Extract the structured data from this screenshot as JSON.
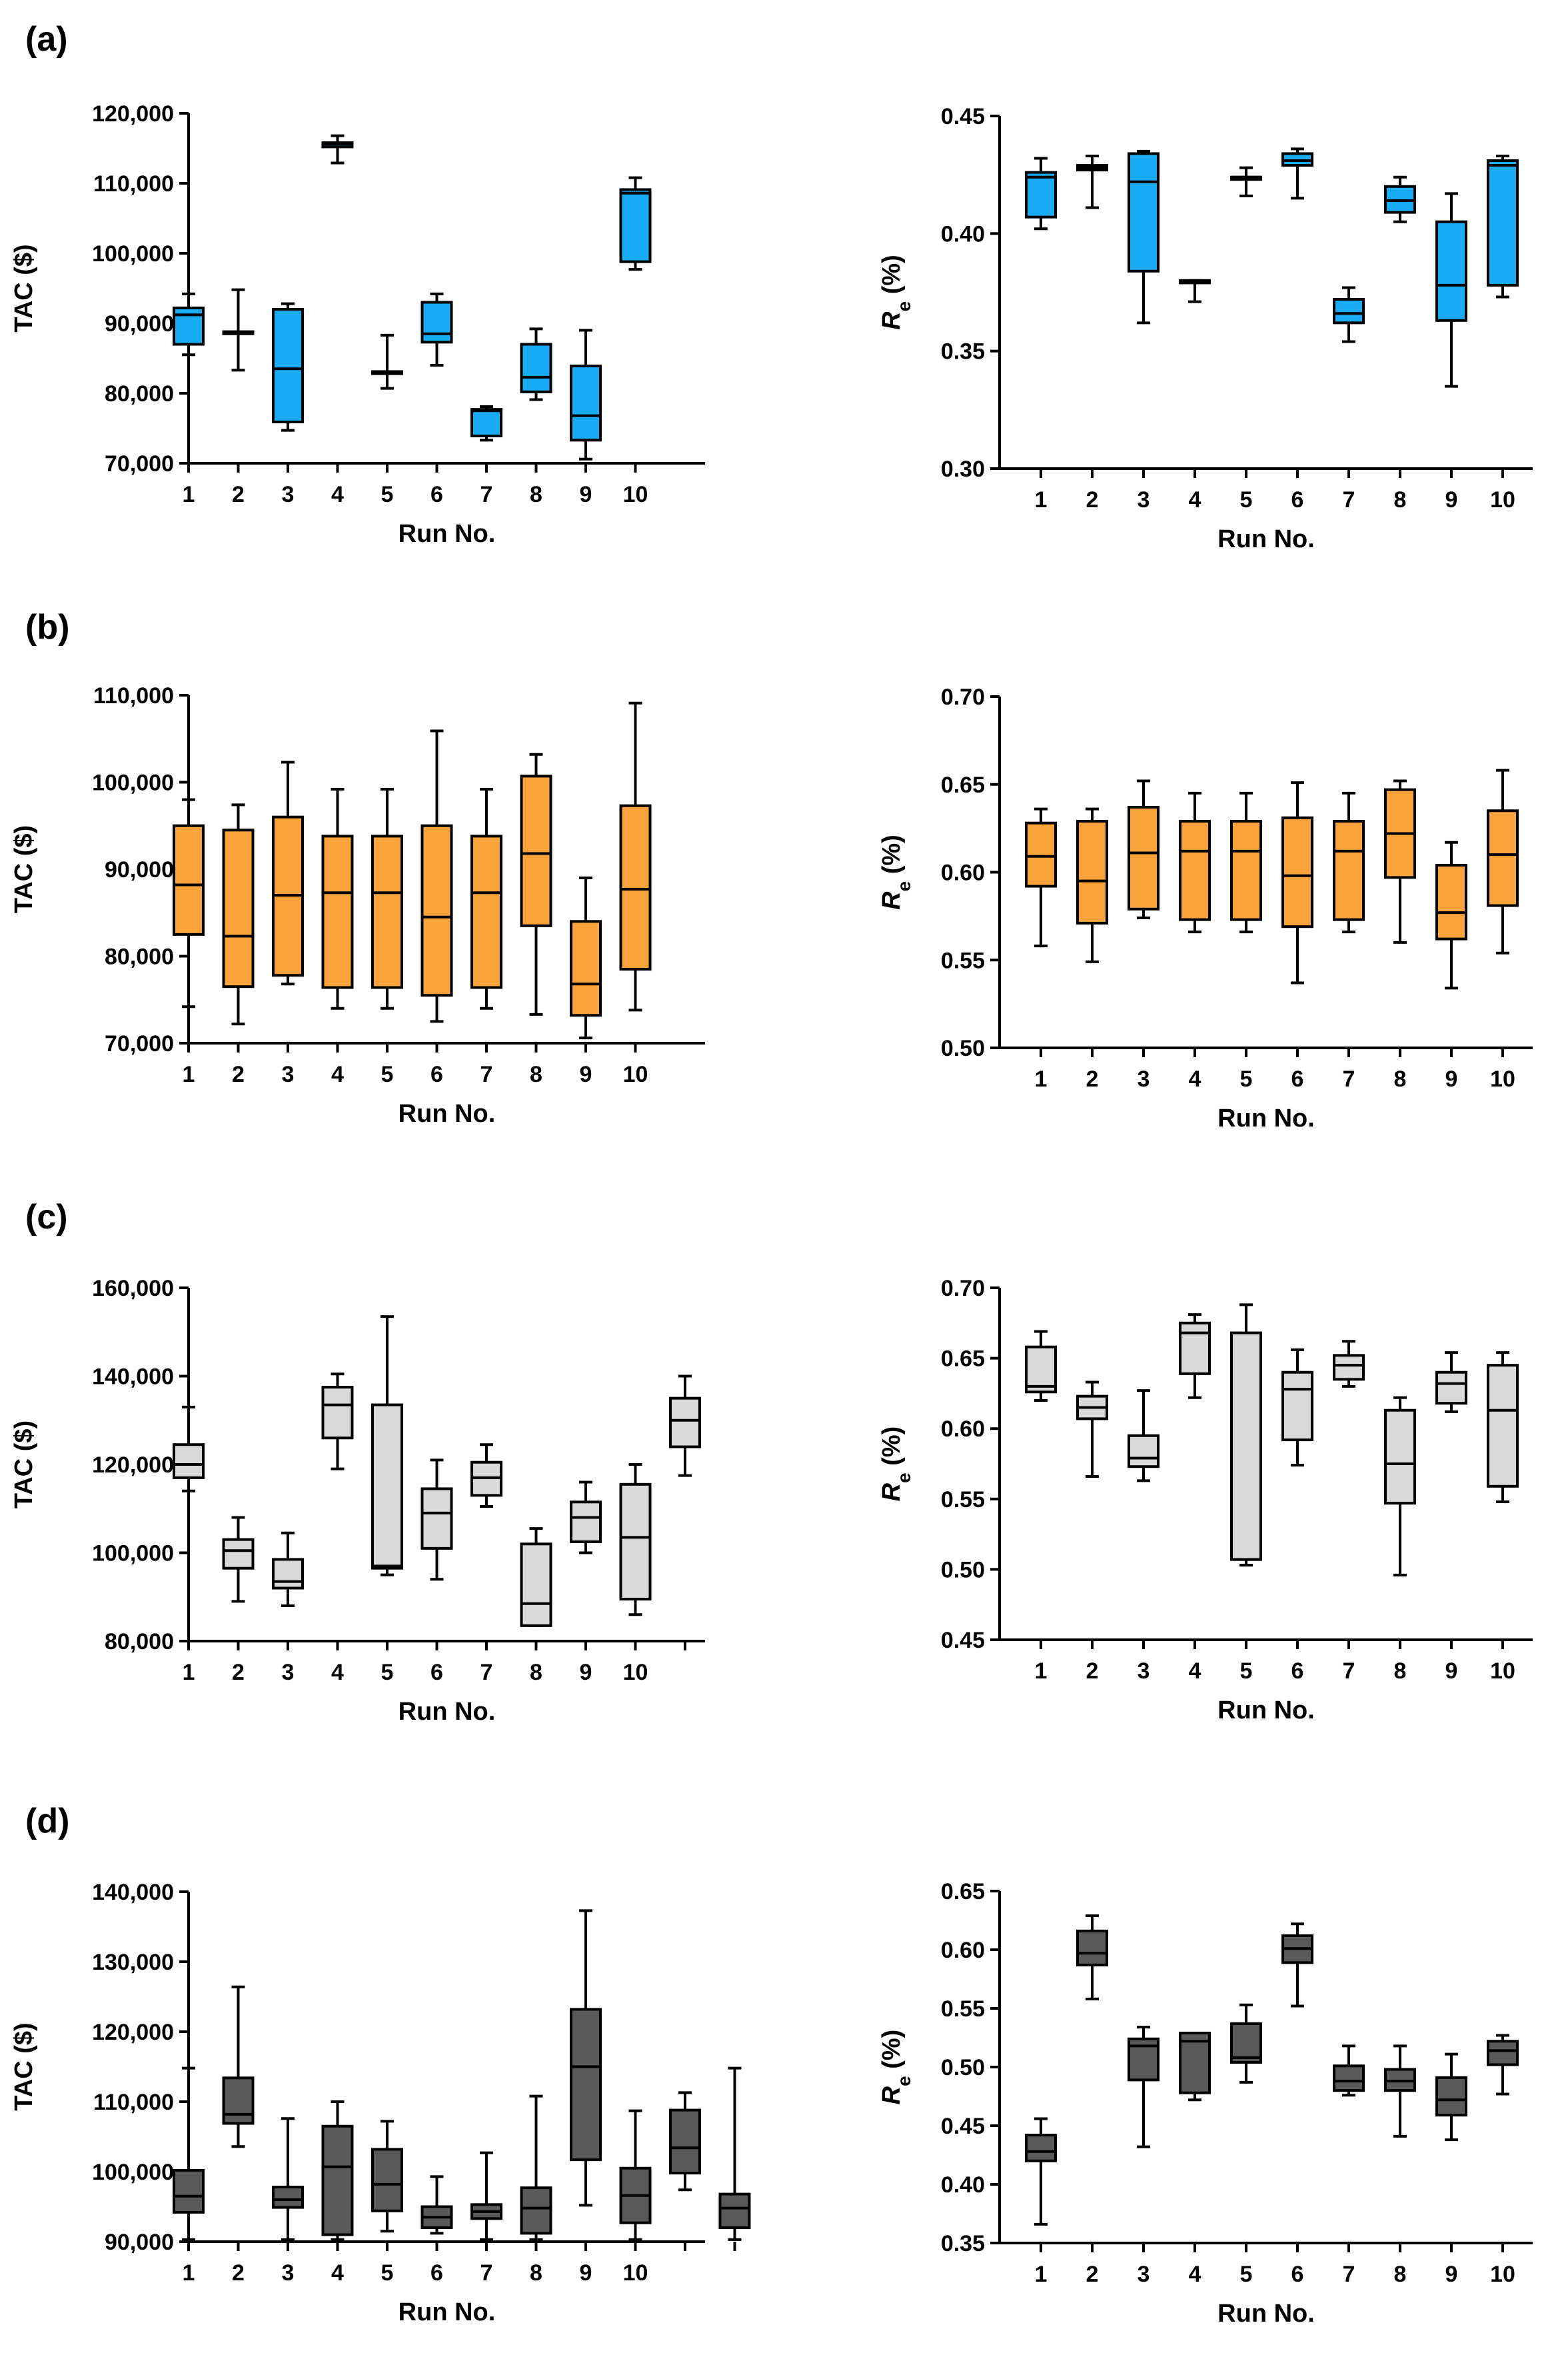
{
  "figure": {
    "panel_labels": [
      "(a)",
      "(b)",
      "(c)",
      "(d)"
    ],
    "colors": {
      "a": "#1aabf5",
      "b": "#f9a33a",
      "c": "#d9d9d9",
      "d": "#595959"
    }
  },
  "chart_data": [
    {
      "panel": "(a)",
      "type": "box",
      "title": "",
      "xlabel": "Run No.",
      "ylabel": "TAC ($)",
      "ylim": [
        70000,
        120000
      ],
      "yticks": [
        70000,
        80000,
        90000,
        100000,
        110000,
        120000
      ],
      "ytick_labels": [
        "70,000",
        "80,000",
        "90,000",
        "100,000",
        "110,000",
        "120,000"
      ],
      "x_positions": [
        1,
        2,
        3,
        4,
        5,
        6,
        7,
        8,
        9,
        10
      ],
      "xtick_labels": [
        "1",
        "2",
        "3",
        "4",
        "5",
        "6",
        "7",
        "8",
        "9",
        "10"
      ],
      "color": "#1aabf5",
      "boxes": [
        {
          "min": 85500,
          "q1": 87000,
          "median": 91200,
          "q3": 92200,
          "max": 94200
        },
        {
          "min": 83300,
          "q1": 88500,
          "median": 88700,
          "q3": 88800,
          "max": 94800
        },
        {
          "min": 74700,
          "q1": 75900,
          "median": 83500,
          "q3": 92000,
          "max": 92800
        },
        {
          "min": 112900,
          "q1": 115200,
          "median": 115600,
          "q3": 115800,
          "max": 116800
        },
        {
          "min": 80700,
          "q1": 82800,
          "median": 83000,
          "q3": 83100,
          "max": 88300
        },
        {
          "min": 84000,
          "q1": 87300,
          "median": 88500,
          "q3": 93000,
          "max": 94200
        },
        {
          "min": 73300,
          "q1": 73900,
          "median": 77500,
          "q3": 77700,
          "max": 78100
        },
        {
          "min": 79100,
          "q1": 80200,
          "median": 82300,
          "q3": 87000,
          "max": 89200
        },
        {
          "min": 70600,
          "q1": 73300,
          "median": 76800,
          "q3": 83900,
          "max": 89000
        },
        {
          "min": 97700,
          "q1": 98800,
          "median": 108600,
          "q3": 109100,
          "max": 110800
        }
      ]
    },
    {
      "panel": "(a)",
      "type": "box",
      "title": "",
      "xlabel": "Run No.",
      "ylabel": "Re (%)",
      "ylim": [
        0.3,
        0.45
      ],
      "yticks": [
        0.3,
        0.35,
        0.4,
        0.45
      ],
      "ytick_labels": [
        "0.30",
        "0.35",
        "0.40",
        "0.45"
      ],
      "x_positions": [
        1,
        2,
        3,
        4,
        5,
        6,
        7,
        8,
        9,
        10
      ],
      "xtick_labels": [
        "1",
        "2",
        "3",
        "4",
        "5",
        "6",
        "7",
        "8",
        "9",
        "10"
      ],
      "color": "#1aabf5",
      "boxes": [
        {
          "min": 0.402,
          "q1": 0.407,
          "median": 0.424,
          "q3": 0.426,
          "max": 0.432
        },
        {
          "min": 0.411,
          "q1": 0.427,
          "median": 0.428,
          "q3": 0.429,
          "max": 0.433
        },
        {
          "min": 0.362,
          "q1": 0.384,
          "median": 0.422,
          "q3": 0.434,
          "max": 0.435
        },
        {
          "min": 0.371,
          "q1": 0.379,
          "median": 0.38,
          "q3": 0.38,
          "max": 0.38
        },
        {
          "min": 0.416,
          "q1": 0.423,
          "median": 0.424,
          "q3": 0.424,
          "max": 0.428
        },
        {
          "min": 0.415,
          "q1": 0.429,
          "median": 0.431,
          "q3": 0.434,
          "max": 0.436
        },
        {
          "min": 0.354,
          "q1": 0.362,
          "median": 0.366,
          "q3": 0.372,
          "max": 0.377
        },
        {
          "min": 0.405,
          "q1": 0.409,
          "median": 0.414,
          "q3": 0.42,
          "max": 0.424
        },
        {
          "min": 0.335,
          "q1": 0.363,
          "median": 0.378,
          "q3": 0.405,
          "max": 0.417
        },
        {
          "min": 0.373,
          "q1": 0.378,
          "median": 0.429,
          "q3": 0.431,
          "max": 0.433
        }
      ]
    },
    {
      "panel": "(b)",
      "type": "box",
      "title": "",
      "xlabel": "Run No.",
      "ylabel": "TAC ($)",
      "ylim": [
        70000,
        110000
      ],
      "yticks": [
        70000,
        80000,
        90000,
        100000,
        110000
      ],
      "ytick_labels": [
        "70,000",
        "80,000",
        "90,000",
        "100,000",
        "110,000"
      ],
      "x_positions": [
        1,
        2,
        3,
        4,
        5,
        6,
        7,
        8,
        9,
        10
      ],
      "xtick_labels": [
        "1",
        "2",
        "3",
        "4",
        "5",
        "6",
        "7",
        "8",
        "9",
        "10"
      ],
      "color": "#f9a33a",
      "boxes": [
        {
          "min": 74200,
          "q1": 82500,
          "median": 88200,
          "q3": 95000,
          "max": 98000
        },
        {
          "min": 72200,
          "q1": 76500,
          "median": 82300,
          "q3": 94500,
          "max": 97400
        },
        {
          "min": 76800,
          "q1": 77800,
          "median": 87000,
          "q3": 96000,
          "max": 102300
        },
        {
          "min": 74000,
          "q1": 76400,
          "median": 87300,
          "q3": 93800,
          "max": 99200
        },
        {
          "min": 74000,
          "q1": 76400,
          "median": 87300,
          "q3": 93800,
          "max": 99200
        },
        {
          "min": 72500,
          "q1": 75500,
          "median": 84500,
          "q3": 95000,
          "max": 105900
        },
        {
          "min": 74000,
          "q1": 76400,
          "median": 87300,
          "q3": 93800,
          "max": 99200
        },
        {
          "min": 73300,
          "q1": 83500,
          "median": 91800,
          "q3": 100700,
          "max": 103200
        },
        {
          "min": 70600,
          "q1": 73200,
          "median": 76800,
          "q3": 84000,
          "max": 89000
        },
        {
          "min": 73800,
          "q1": 78500,
          "median": 87700,
          "q3": 97300,
          "max": 109100
        }
      ]
    },
    {
      "panel": "(b)",
      "type": "box",
      "title": "",
      "xlabel": "Run No.",
      "ylabel": "Re (%)",
      "ylim": [
        0.5,
        0.7
      ],
      "yticks": [
        0.5,
        0.55,
        0.6,
        0.65,
        0.7
      ],
      "ytick_labels": [
        "0.50",
        "0.55",
        "0.60",
        "0.65",
        "0.70"
      ],
      "x_positions": [
        1,
        2,
        3,
        4,
        5,
        6,
        7,
        8,
        9,
        10
      ],
      "xtick_labels": [
        "1",
        "2",
        "3",
        "4",
        "5",
        "6",
        "7",
        "8",
        "9",
        "10"
      ],
      "color": "#f9a33a",
      "boxes": [
        {
          "min": 0.558,
          "q1": 0.592,
          "median": 0.609,
          "q3": 0.628,
          "max": 0.636
        },
        {
          "min": 0.549,
          "q1": 0.571,
          "median": 0.595,
          "q3": 0.629,
          "max": 0.636
        },
        {
          "min": 0.574,
          "q1": 0.579,
          "median": 0.611,
          "q3": 0.637,
          "max": 0.652
        },
        {
          "min": 0.566,
          "q1": 0.573,
          "median": 0.612,
          "q3": 0.629,
          "max": 0.645
        },
        {
          "min": 0.566,
          "q1": 0.573,
          "median": 0.612,
          "q3": 0.629,
          "max": 0.645
        },
        {
          "min": 0.537,
          "q1": 0.569,
          "median": 0.598,
          "q3": 0.631,
          "max": 0.651
        },
        {
          "min": 0.566,
          "q1": 0.573,
          "median": 0.612,
          "q3": 0.629,
          "max": 0.645
        },
        {
          "min": 0.56,
          "q1": 0.597,
          "median": 0.622,
          "q3": 0.647,
          "max": 0.652
        },
        {
          "min": 0.534,
          "q1": 0.562,
          "median": 0.577,
          "q3": 0.604,
          "max": 0.617
        },
        {
          "min": 0.554,
          "q1": 0.581,
          "median": 0.61,
          "q3": 0.635,
          "max": 0.658
        }
      ]
    },
    {
      "panel": "(c)",
      "type": "box",
      "title": "",
      "xlabel": "Run No.",
      "ylabel": "TAC ($)",
      "ylim": [
        80000,
        160000
      ],
      "yticks": [
        80000,
        100000,
        120000,
        140000,
        160000
      ],
      "ytick_labels": [
        "80,000",
        "100,000",
        "120,000",
        "140,000",
        "160,000"
      ],
      "x_positions": [
        1,
        2,
        3,
        4,
        5,
        6,
        7,
        8,
        9,
        10,
        11
      ],
      "xtick_labels": [
        "1",
        "2",
        "3",
        "4",
        "5",
        "6",
        "7",
        "8",
        "9",
        "10",
        ""
      ],
      "color": "#d9d9d9",
      "boxes": [
        {
          "min": 114000,
          "q1": 117000,
          "median": 120000,
          "q3": 124500,
          "max": 133000
        },
        {
          "min": 89000,
          "q1": 96500,
          "median": 100500,
          "q3": 103000,
          "max": 108000
        },
        {
          "min": 88000,
          "q1": 92000,
          "median": 93500,
          "q3": 98500,
          "max": 104500
        },
        {
          "min": 119000,
          "q1": 126000,
          "median": 133500,
          "q3": 137500,
          "max": 140500
        },
        {
          "min": 95000,
          "q1": 96500,
          "median": 97000,
          "q3": 133500,
          "max": 153500
        },
        {
          "min": 94000,
          "q1": 101000,
          "median": 109000,
          "q3": 114500,
          "max": 121000
        },
        {
          "min": 110500,
          "q1": 113000,
          "median": 117000,
          "q3": 120500,
          "max": 124500
        },
        {
          "min": 83500,
          "q1": 83500,
          "median": 88500,
          "q3": 102000,
          "max": 105500
        },
        {
          "min": 100000,
          "q1": 102500,
          "median": 108000,
          "q3": 111500,
          "max": 116000
        },
        {
          "min": 86000,
          "q1": 89500,
          "median": 103500,
          "q3": 115500,
          "max": 120000
        },
        {
          "min": 117500,
          "q1": 124000,
          "median": 130000,
          "q3": 135000,
          "max": 140000
        }
      ]
    },
    {
      "panel": "(c)",
      "type": "box",
      "title": "",
      "xlabel": "Run No.",
      "ylabel": "Re (%)",
      "ylim": [
        0.45,
        0.7
      ],
      "yticks": [
        0.45,
        0.5,
        0.55,
        0.6,
        0.65,
        0.7
      ],
      "ytick_labels": [
        "0.45",
        "0.50",
        "0.55",
        "0.60",
        "0.65",
        "0.70"
      ],
      "x_positions": [
        1,
        2,
        3,
        4,
        5,
        6,
        7,
        8,
        9,
        10
      ],
      "xtick_labels": [
        "1",
        "2",
        "3",
        "4",
        "5",
        "6",
        "7",
        "8",
        "9",
        "10"
      ],
      "color": "#d9d9d9",
      "boxes": [
        {
          "min": 0.62,
          "q1": 0.626,
          "median": 0.63,
          "q3": 0.658,
          "max": 0.669
        },
        {
          "min": 0.566,
          "q1": 0.607,
          "median": 0.615,
          "q3": 0.623,
          "max": 0.633
        },
        {
          "min": 0.563,
          "q1": 0.573,
          "median": 0.579,
          "q3": 0.595,
          "max": 0.627
        },
        {
          "min": 0.622,
          "q1": 0.639,
          "median": 0.668,
          "q3": 0.675,
          "max": 0.681
        },
        {
          "min": 0.503,
          "q1": 0.507,
          "median": 0.507,
          "q3": 0.668,
          "max": 0.688
        },
        {
          "min": 0.574,
          "q1": 0.592,
          "median": 0.628,
          "q3": 0.64,
          "max": 0.656
        },
        {
          "min": 0.63,
          "q1": 0.635,
          "median": 0.645,
          "q3": 0.652,
          "max": 0.662
        },
        {
          "min": 0.496,
          "q1": 0.547,
          "median": 0.575,
          "q3": 0.613,
          "max": 0.622
        },
        {
          "min": 0.612,
          "q1": 0.618,
          "median": 0.632,
          "q3": 0.64,
          "max": 0.654
        },
        {
          "min": 0.548,
          "q1": 0.559,
          "median": 0.613,
          "q3": 0.645,
          "max": 0.654
        }
      ]
    },
    {
      "panel": "(d)",
      "type": "box",
      "title": "",
      "xlabel": "Run No.",
      "ylabel": "TAC ($)",
      "ylim": [
        90000,
        140000
      ],
      "yticks": [
        90000,
        100000,
        110000,
        120000,
        130000,
        140000
      ],
      "ytick_labels": [
        "90,000",
        "100,000",
        "110,000",
        "120,000",
        "130,000",
        "140,000"
      ],
      "x_positions": [
        1,
        2,
        3,
        4,
        5,
        6,
        7,
        8,
        9,
        10,
        11,
        12
      ],
      "xtick_labels": [
        "1",
        "2",
        "3",
        "4",
        "5",
        "6",
        "7",
        "8",
        "9",
        "10",
        "",
        ""
      ],
      "color": "#595959",
      "boxes": [
        {
          "min": 90300,
          "q1": 94200,
          "median": 96500,
          "q3": 100200,
          "max": 114800
        },
        {
          "min": 103600,
          "q1": 106900,
          "median": 108200,
          "q3": 113400,
          "max": 126400
        },
        {
          "min": 90300,
          "q1": 94900,
          "median": 96000,
          "q3": 97800,
          "max": 107600
        },
        {
          "min": 90300,
          "q1": 91000,
          "median": 100700,
          "q3": 106500,
          "max": 110000
        },
        {
          "min": 91500,
          "q1": 94400,
          "median": 98200,
          "q3": 103200,
          "max": 107200
        },
        {
          "min": 91200,
          "q1": 92000,
          "median": 93500,
          "q3": 95000,
          "max": 99300
        },
        {
          "min": 90300,
          "q1": 93300,
          "median": 94300,
          "q3": 95300,
          "max": 102700
        },
        {
          "min": 90300,
          "q1": 91200,
          "median": 94800,
          "q3": 97700,
          "max": 110800
        },
        {
          "min": 95200,
          "q1": 101700,
          "median": 115000,
          "q3": 123200,
          "max": 137300
        },
        {
          "min": 90300,
          "q1": 92700,
          "median": 96600,
          "q3": 100500,
          "max": 108700
        },
        {
          "min": 97400,
          "q1": 99800,
          "median": 103400,
          "q3": 108800,
          "max": 111300
        },
        {
          "min": 90300,
          "q1": 92000,
          "median": 94800,
          "q3": 96800,
          "max": 114800
        }
      ]
    },
    {
      "panel": "(d)",
      "type": "box",
      "title": "",
      "xlabel": "Run No.",
      "ylabel": "Re (%)",
      "ylim": [
        0.35,
        0.65
      ],
      "yticks": [
        0.35,
        0.4,
        0.45,
        0.5,
        0.55,
        0.6,
        0.65
      ],
      "ytick_labels": [
        "0.35",
        "0.40",
        "0.45",
        "0.50",
        "0.55",
        "0.60",
        "0.65"
      ],
      "x_positions": [
        1,
        2,
        3,
        4,
        5,
        6,
        7,
        8,
        9,
        10
      ],
      "xtick_labels": [
        "1",
        "2",
        "3",
        "4",
        "5",
        "6",
        "7",
        "8",
        "9",
        "10"
      ],
      "color": "#595959",
      "boxes": [
        {
          "min": 0.366,
          "q1": 0.42,
          "median": 0.428,
          "q3": 0.442,
          "max": 0.456
        },
        {
          "min": 0.558,
          "q1": 0.587,
          "median": 0.597,
          "q3": 0.616,
          "max": 0.629
        },
        {
          "min": 0.432,
          "q1": 0.489,
          "median": 0.518,
          "q3": 0.524,
          "max": 0.534
        },
        {
          "min": 0.472,
          "q1": 0.478,
          "median": 0.522,
          "q3": 0.529,
          "max": 0.529
        },
        {
          "min": 0.487,
          "q1": 0.504,
          "median": 0.508,
          "q3": 0.537,
          "max": 0.553
        },
        {
          "min": 0.552,
          "q1": 0.589,
          "median": 0.601,
          "q3": 0.612,
          "max": 0.622
        },
        {
          "min": 0.476,
          "q1": 0.48,
          "median": 0.488,
          "q3": 0.501,
          "max": 0.518
        },
        {
          "min": 0.441,
          "q1": 0.48,
          "median": 0.488,
          "q3": 0.498,
          "max": 0.518
        },
        {
          "min": 0.438,
          "q1": 0.459,
          "median": 0.472,
          "q3": 0.491,
          "max": 0.511
        },
        {
          "min": 0.477,
          "q1": 0.502,
          "median": 0.514,
          "q3": 0.522,
          "max": 0.527
        }
      ]
    }
  ]
}
